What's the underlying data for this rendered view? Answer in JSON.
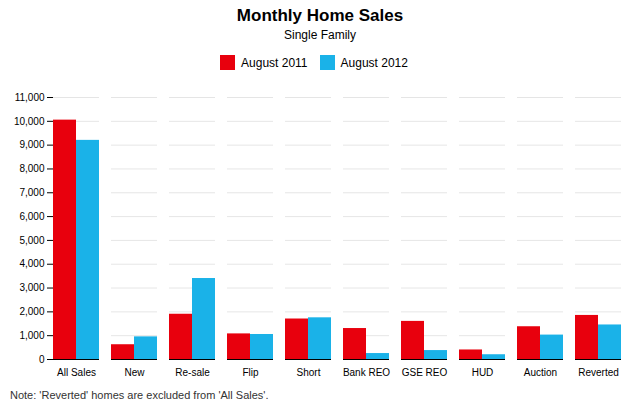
{
  "chart_data": {
    "type": "bar",
    "title": "Monthly Home Sales",
    "subtitle": "Single Family",
    "note": "Note: 'Reverted' homes are excluded from 'All Sales'.",
    "categories": [
      "All Sales",
      "New",
      "Re-sale",
      "Flip",
      "Short",
      "Bank REO",
      "GSE REO",
      "HUD",
      "Auction",
      "Reverted"
    ],
    "series": [
      {
        "name": "August 2011",
        "color": "#e8000d",
        "values": [
          10050,
          620,
          1900,
          1075,
          1700,
          1300,
          1600,
          400,
          1375,
          1850
        ]
      },
      {
        "name": "August 2012",
        "color": "#1ab2e8",
        "values": [
          9200,
          950,
          3400,
          1050,
          1750,
          250,
          375,
          200,
          1025,
          1450
        ]
      }
    ],
    "ylim": [
      0,
      11000
    ],
    "yticks": [
      0,
      {
        "value": 1000,
        "label": "1,000"
      },
      {
        "value": 2000,
        "label": "2,000"
      },
      {
        "value": 3000,
        "label": "3,000"
      },
      {
        "value": 4000,
        "label": "4,000"
      },
      {
        "value": 5000,
        "label": "5,000"
      },
      {
        "value": 6000,
        "label": "6,000"
      },
      {
        "value": 7000,
        "label": "7,000"
      },
      {
        "value": 8000,
        "label": "8,000"
      },
      {
        "value": 9000,
        "label": "9,000"
      },
      {
        "value": 10000,
        "label": "10,000"
      },
      {
        "value": 11000,
        "label": "11,000"
      }
    ],
    "grid": true,
    "legend": "top"
  }
}
